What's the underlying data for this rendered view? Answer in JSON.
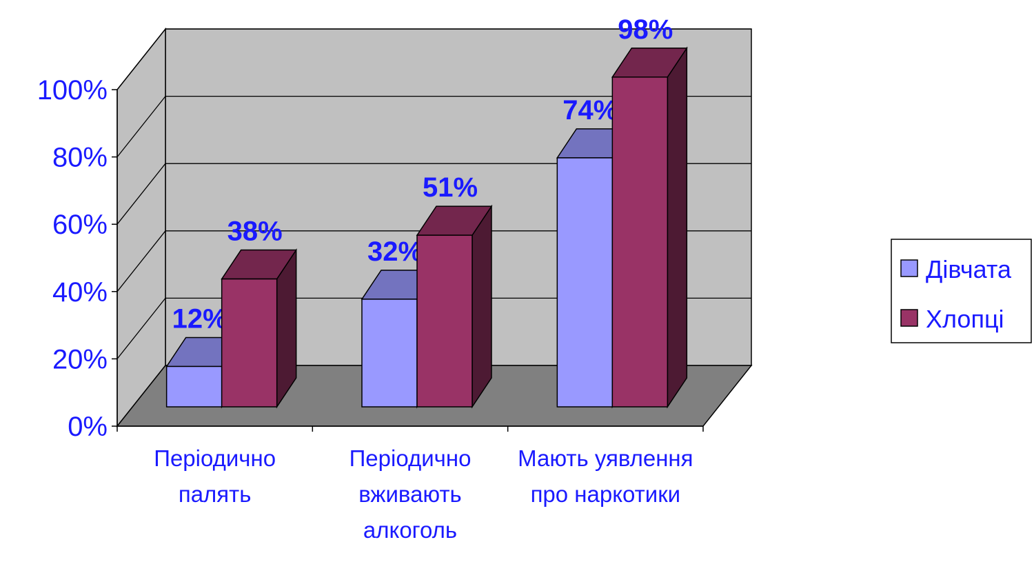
{
  "chart_data": {
    "type": "bar",
    "categories": [
      [
        "Періодично",
        "палять"
      ],
      [
        "Періодично",
        "вживають",
        "алкоголь"
      ],
      [
        "Мають уявлення",
        "про наркотики"
      ]
    ],
    "series": [
      {
        "name": "Дівчата",
        "values": [
          12,
          32,
          74
        ],
        "labels": [
          "12%",
          "32%",
          "74%"
        ],
        "color": "#9999ff"
      },
      {
        "name": "Хлопці",
        "values": [
          38,
          51,
          98
        ],
        "labels": [
          "38%",
          "51%",
          "98%"
        ],
        "color": "#993366"
      }
    ],
    "y_ticks": [
      "0%",
      "20%",
      "40%",
      "60%",
      "80%",
      "100%"
    ],
    "ylim": [
      0,
      100
    ],
    "legend_position": "right",
    "three_d": true,
    "grid": true,
    "colors": {
      "text": "#1a1aff",
      "wall": "#c0c0c0",
      "floor": "#808080"
    }
  }
}
